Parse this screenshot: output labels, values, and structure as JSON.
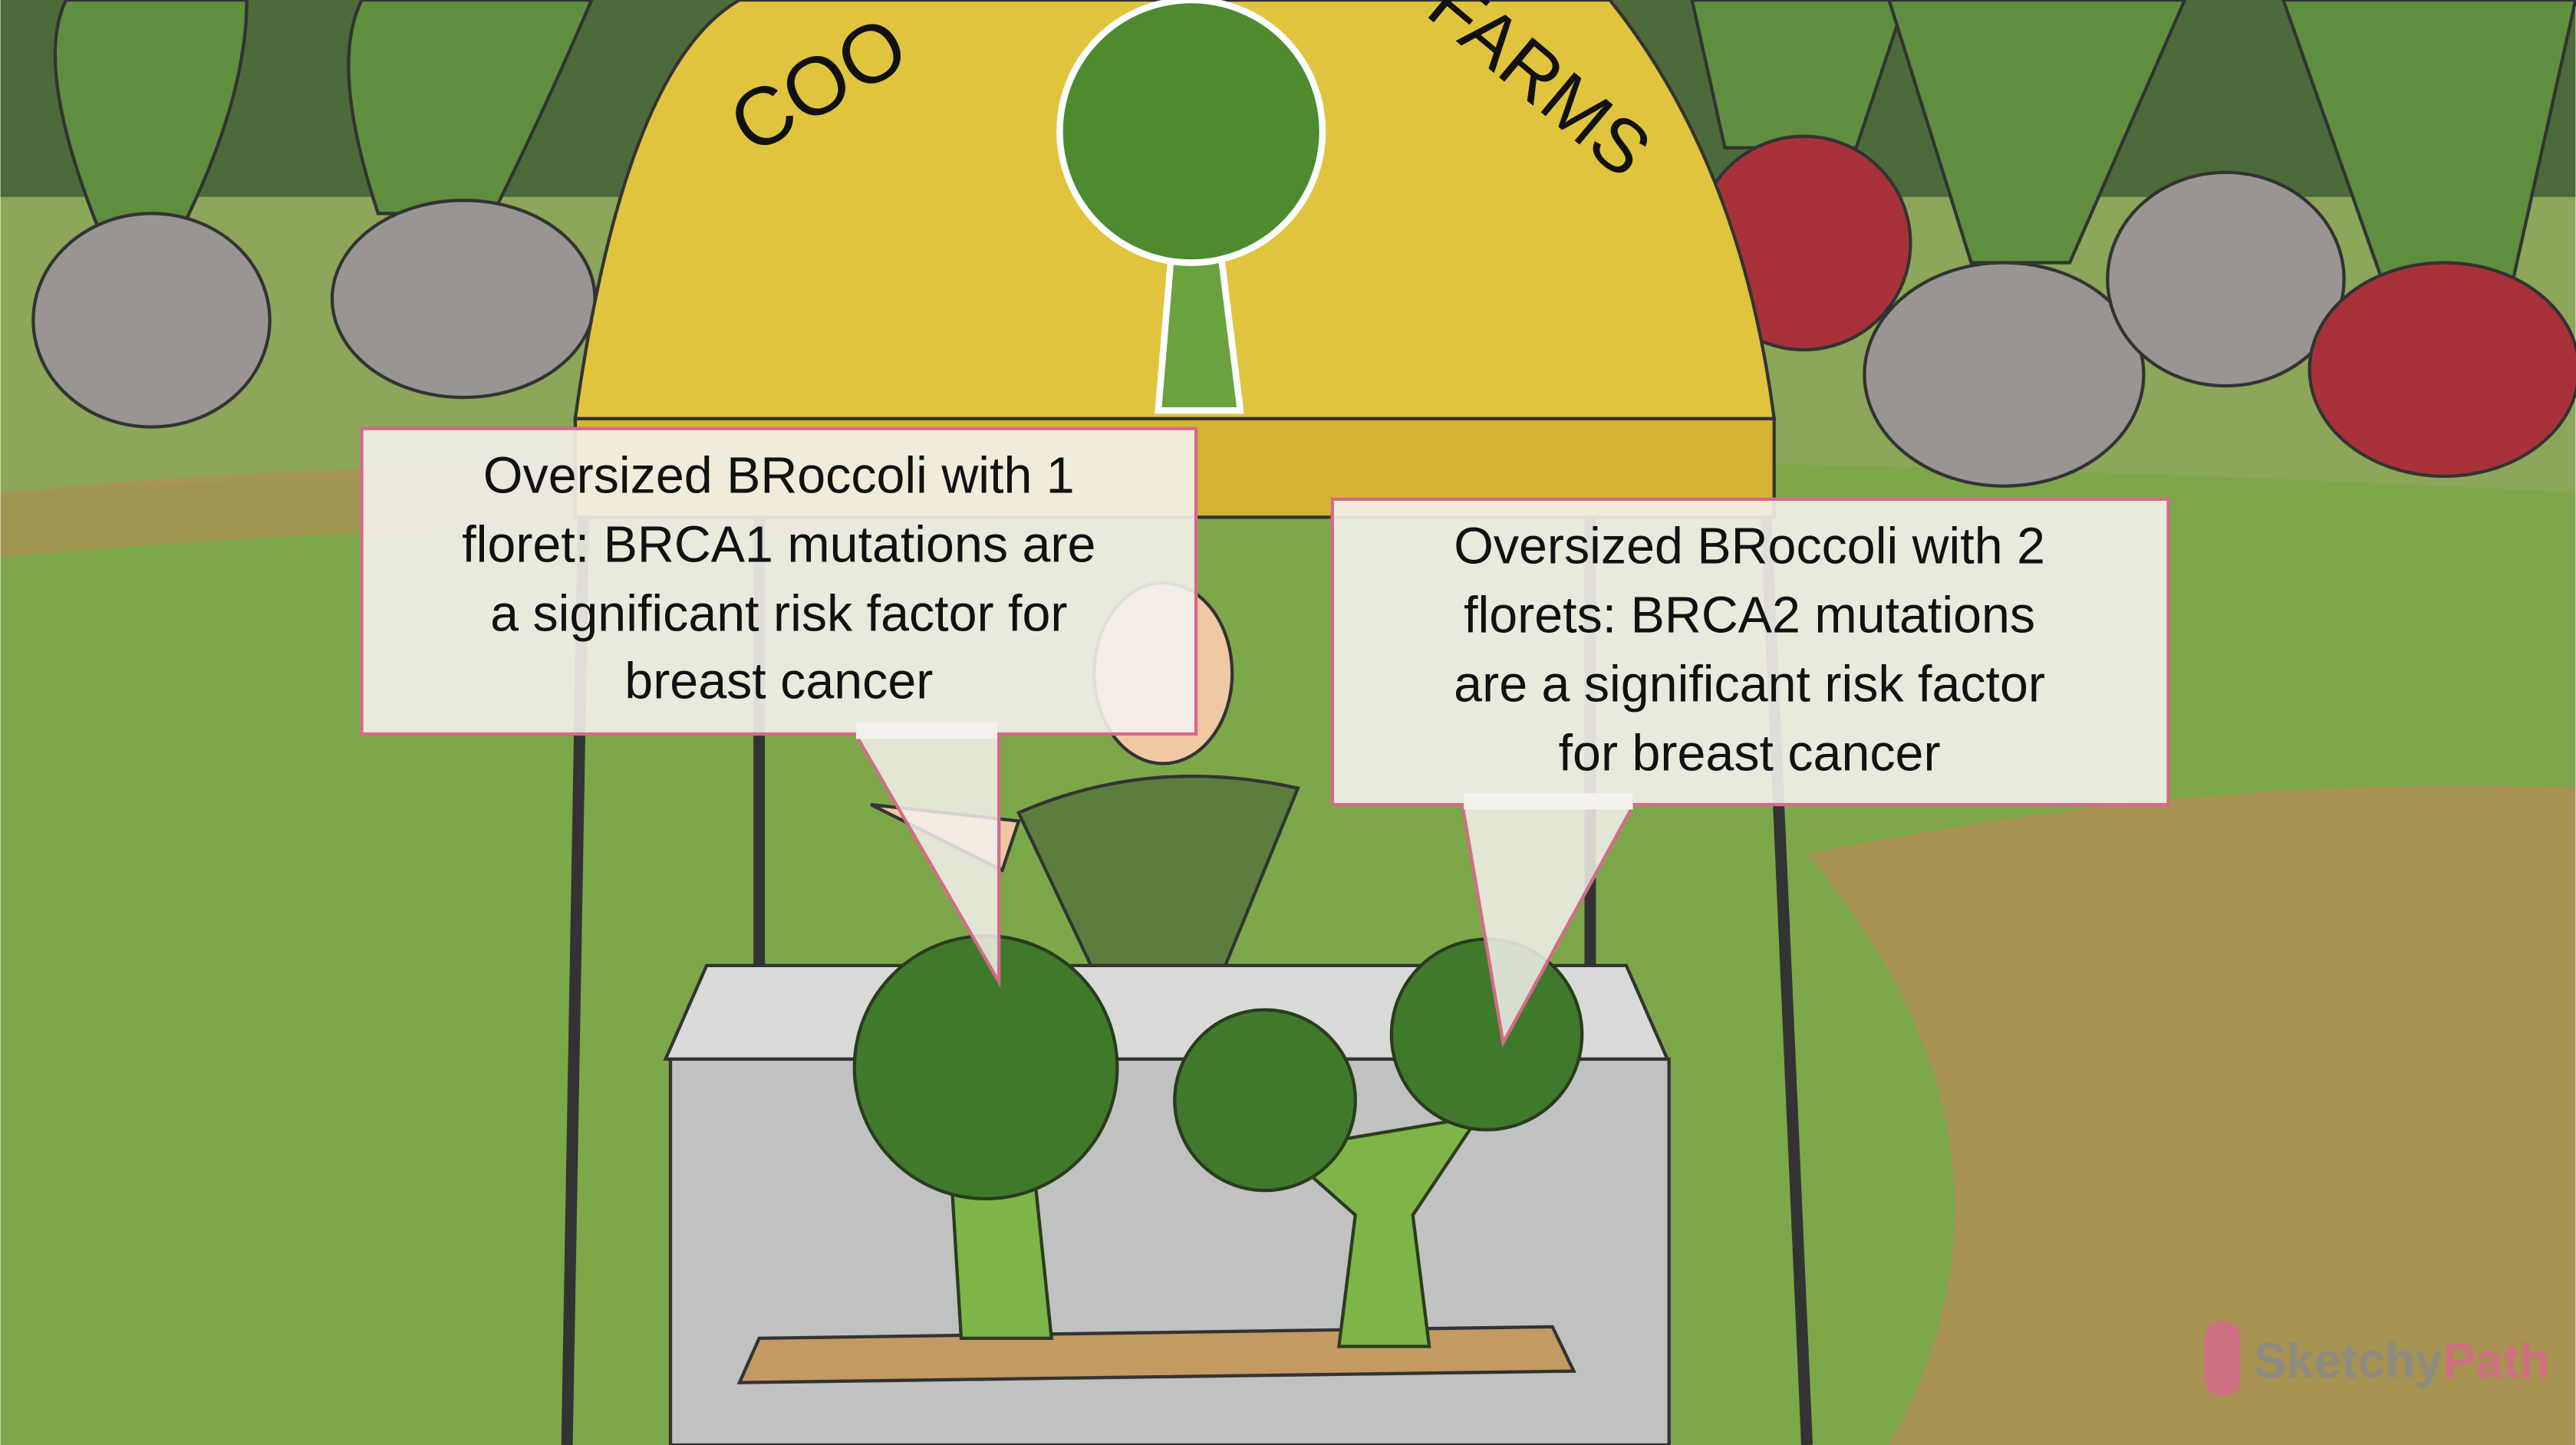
{
  "sign": {
    "left": "COO",
    "right": "FARMS"
  },
  "callouts": [
    {
      "lines": [
        "Oversized BRoccoli with 1",
        "floret: BRCA1 mutations are",
        "a significant risk factor for",
        "breast cancer"
      ]
    },
    {
      "lines": [
        "Oversized BRoccoli with 2",
        "florets: BRCA2 mutations",
        "are a significant risk factor",
        "for breast cancer"
      ]
    }
  ],
  "logo": {
    "brand": "Sketchy",
    "product": "Path"
  }
}
